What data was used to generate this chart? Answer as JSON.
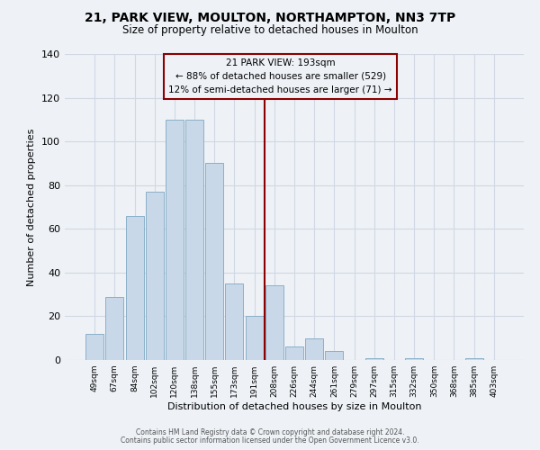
{
  "title": "21, PARK VIEW, MOULTON, NORTHAMPTON, NN3 7TP",
  "subtitle": "Size of property relative to detached houses in Moulton",
  "xlabel": "Distribution of detached houses by size in Moulton",
  "ylabel": "Number of detached properties",
  "bar_labels": [
    "49sqm",
    "67sqm",
    "84sqm",
    "102sqm",
    "120sqm",
    "138sqm",
    "155sqm",
    "173sqm",
    "191sqm",
    "208sqm",
    "226sqm",
    "244sqm",
    "261sqm",
    "279sqm",
    "297sqm",
    "315sqm",
    "332sqm",
    "350sqm",
    "368sqm",
    "385sqm",
    "403sqm"
  ],
  "bar_values": [
    12,
    29,
    66,
    77,
    110,
    110,
    90,
    35,
    20,
    34,
    6,
    10,
    4,
    0,
    1,
    0,
    1,
    0,
    0,
    1,
    0
  ],
  "bar_color": "#c8d8e8",
  "bar_edgecolor": "#8ab0c8",
  "vline_x_index": 8.5,
  "vline_color": "#8b0000",
  "annotation_title": "21 PARK VIEW: 193sqm",
  "annotation_line1": "← 88% of detached houses are smaller (529)",
  "annotation_line2": "12% of semi-detached houses are larger (71) →",
  "annotation_box_edgecolor": "#8b0000",
  "ylim": [
    0,
    140
  ],
  "yticks": [
    0,
    20,
    40,
    60,
    80,
    100,
    120,
    140
  ],
  "footer1": "Contains HM Land Registry data © Crown copyright and database right 2024.",
  "footer2": "Contains public sector information licensed under the Open Government Licence v3.0.",
  "bg_color": "#eef2f7",
  "grid_color": "#d0d8e4"
}
